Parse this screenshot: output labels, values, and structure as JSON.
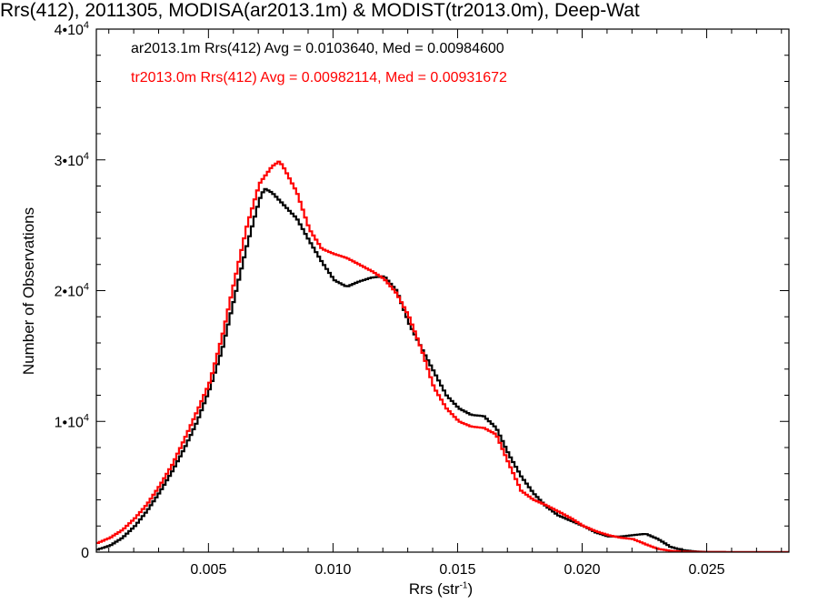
{
  "chart_data": {
    "type": "line",
    "title": "Rrs(412), 2011305, MODISA(ar2013.1m) & MODIST(tr2013.0m), Deep-Wat",
    "xlabel": "Rrs (str",
    "xlabel_sup": "-1",
    "xlabel_suffix": ")",
    "ylabel": "Number of Observations",
    "xlim": [
      0.0005,
      0.0283
    ],
    "ylim": [
      0,
      40000
    ],
    "x_ticks": [
      0.005,
      0.01,
      0.015,
      0.02,
      0.025
    ],
    "x_tick_labels": [
      "0.005",
      "0.010",
      "0.015",
      "0.020",
      "0.025"
    ],
    "y_ticks": [
      0,
      10000,
      20000,
      30000,
      40000
    ],
    "y_tick_labels": [
      {
        "base": "0",
        "exp": ""
      },
      {
        "base": "1•10",
        "exp": "4"
      },
      {
        "base": "2•10",
        "exp": "4"
      },
      {
        "base": "3•10",
        "exp": "4"
      },
      {
        "base": "4•10",
        "exp": "4"
      }
    ],
    "legend": [
      {
        "text": "ar2013.1m Rrs(412) Avg = 0.0103640, Med = 0.00984600",
        "color": "#000000"
      },
      {
        "text": "tr2013.0m Rrs(412) Avg = 0.00982114, Med = 0.00931672",
        "color": "#ff0000"
      }
    ],
    "legend_placement": "top-left",
    "series": [
      {
        "name": "ar2013.1m",
        "color": "#000000",
        "points": [
          [
            0.0005,
            200
          ],
          [
            0.001,
            500
          ],
          [
            0.0015,
            1100
          ],
          [
            0.002,
            2000
          ],
          [
            0.0025,
            3200
          ],
          [
            0.003,
            4600
          ],
          [
            0.0035,
            6200
          ],
          [
            0.004,
            8000
          ],
          [
            0.0045,
            10000
          ],
          [
            0.005,
            12500
          ],
          [
            0.0055,
            15500
          ],
          [
            0.006,
            19500
          ],
          [
            0.0065,
            23500
          ],
          [
            0.007,
            27000
          ],
          [
            0.0072,
            27800
          ],
          [
            0.0075,
            27500
          ],
          [
            0.008,
            26500
          ],
          [
            0.0085,
            25500
          ],
          [
            0.009,
            23800
          ],
          [
            0.0095,
            22200
          ],
          [
            0.01,
            20800
          ],
          [
            0.0105,
            20300
          ],
          [
            0.011,
            20700
          ],
          [
            0.0115,
            21000
          ],
          [
            0.012,
            21100
          ],
          [
            0.0125,
            20000
          ],
          [
            0.013,
            17500
          ],
          [
            0.0135,
            15600
          ],
          [
            0.014,
            13800
          ],
          [
            0.0145,
            12000
          ],
          [
            0.015,
            11000
          ],
          [
            0.0155,
            10500
          ],
          [
            0.016,
            10400
          ],
          [
            0.0165,
            9500
          ],
          [
            0.017,
            7500
          ],
          [
            0.0175,
            5800
          ],
          [
            0.018,
            4500
          ],
          [
            0.0185,
            3500
          ],
          [
            0.019,
            2800
          ],
          [
            0.0195,
            2400
          ],
          [
            0.02,
            2000
          ],
          [
            0.0205,
            1500
          ],
          [
            0.021,
            1200
          ],
          [
            0.0215,
            1200
          ],
          [
            0.022,
            1300
          ],
          [
            0.0225,
            1400
          ],
          [
            0.023,
            1000
          ],
          [
            0.0235,
            400
          ],
          [
            0.024,
            150
          ],
          [
            0.0245,
            50
          ],
          [
            0.025,
            10
          ],
          [
            0.026,
            0
          ],
          [
            0.0283,
            0
          ]
        ]
      },
      {
        "name": "tr2013.0m",
        "color": "#ff0000",
        "points": [
          [
            0.0005,
            700
          ],
          [
            0.001,
            1100
          ],
          [
            0.0015,
            1700
          ],
          [
            0.002,
            2600
          ],
          [
            0.0025,
            3700
          ],
          [
            0.003,
            5100
          ],
          [
            0.0035,
            6700
          ],
          [
            0.004,
            8700
          ],
          [
            0.0045,
            10800
          ],
          [
            0.005,
            13000
          ],
          [
            0.0055,
            16500
          ],
          [
            0.006,
            20800
          ],
          [
            0.0065,
            25000
          ],
          [
            0.007,
            28200
          ],
          [
            0.0075,
            29500
          ],
          [
            0.0078,
            29900
          ],
          [
            0.008,
            29300
          ],
          [
            0.0085,
            27500
          ],
          [
            0.009,
            24700
          ],
          [
            0.0095,
            23200
          ],
          [
            0.01,
            22800
          ],
          [
            0.0105,
            22500
          ],
          [
            0.011,
            22000
          ],
          [
            0.0115,
            21500
          ],
          [
            0.012,
            20900
          ],
          [
            0.0125,
            19800
          ],
          [
            0.013,
            18000
          ],
          [
            0.0135,
            15500
          ],
          [
            0.014,
            12600
          ],
          [
            0.0145,
            11000
          ],
          [
            0.015,
            10000
          ],
          [
            0.0155,
            9600
          ],
          [
            0.016,
            9500
          ],
          [
            0.0165,
            9000
          ],
          [
            0.017,
            6800
          ],
          [
            0.0175,
            4700
          ],
          [
            0.018,
            4000
          ],
          [
            0.0185,
            3600
          ],
          [
            0.019,
            3100
          ],
          [
            0.0195,
            2600
          ],
          [
            0.02,
            2000
          ],
          [
            0.0205,
            1600
          ],
          [
            0.021,
            1300
          ],
          [
            0.0215,
            1100
          ],
          [
            0.022,
            1000
          ],
          [
            0.0225,
            600
          ],
          [
            0.023,
            250
          ],
          [
            0.0235,
            100
          ],
          [
            0.024,
            40
          ],
          [
            0.025,
            10
          ],
          [
            0.026,
            0
          ],
          [
            0.0283,
            0
          ]
        ]
      }
    ]
  }
}
